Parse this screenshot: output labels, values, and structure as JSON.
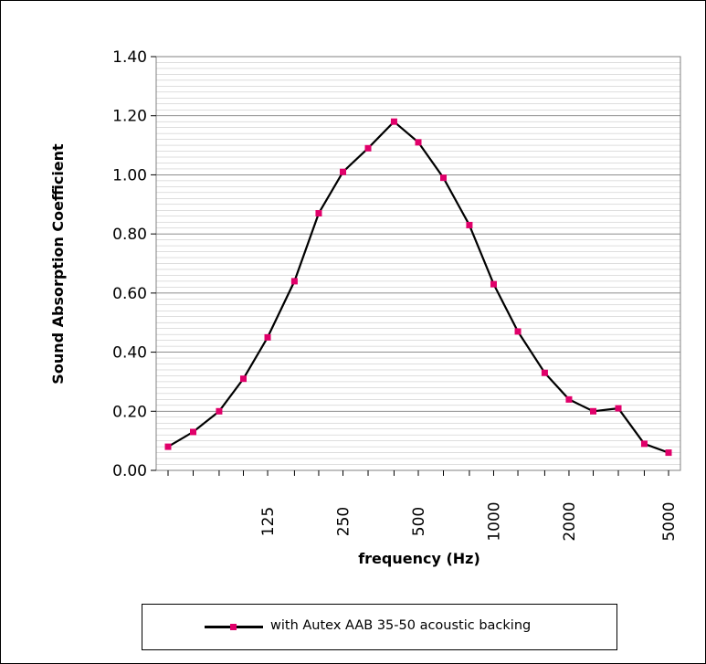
{
  "chart_data": {
    "type": "line",
    "title": "",
    "xlabel": "frequency (Hz)",
    "ylabel": "Sound Absorption Coefficient",
    "x": [
      50,
      63,
      80,
      100,
      125,
      160,
      200,
      250,
      315,
      400,
      500,
      630,
      800,
      1000,
      1250,
      1600,
      2000,
      2500,
      3150,
      4000,
      5000
    ],
    "xtick_labels": [
      "125",
      "250",
      "500",
      "1000",
      "2000",
      "5000"
    ],
    "xtick_values": [
      125,
      250,
      500,
      1000,
      2000,
      5000
    ],
    "x_scale": "log",
    "ylim": [
      0,
      1.4
    ],
    "ytick_labels": [
      "0.00",
      "0.20",
      "0.40",
      "0.60",
      "0.80",
      "1.00",
      "1.20",
      "1.40"
    ],
    "ytick_values": [
      0,
      0.2,
      0.4,
      0.6,
      0.8,
      1.0,
      1.2,
      1.4
    ],
    "grid": true,
    "legend_position": "bottom",
    "series": [
      {
        "name": "with Autex AAB 35-50 acoustic backing",
        "line_color": "#000000",
        "marker_color": "#e0006a",
        "values": [
          0.08,
          0.13,
          0.2,
          0.31,
          0.45,
          0.64,
          0.87,
          1.01,
          1.09,
          1.18,
          1.11,
          0.99,
          0.83,
          0.63,
          0.47,
          0.33,
          0.24,
          0.2,
          0.21,
          0.09,
          0.06
        ]
      }
    ]
  }
}
